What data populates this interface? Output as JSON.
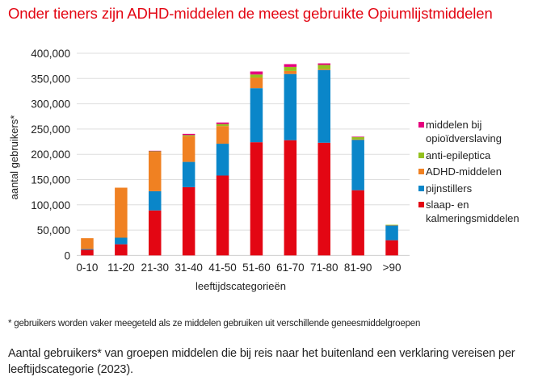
{
  "title": "Onder tieners zijn ADHD-middelen de meest gebruikte Opiumlijstmiddelen",
  "footnote": "* gebruikers worden vaker meegeteld als ze middelen gebruiken uit verschillende geneesmiddelgroepen",
  "caption": "Aantal gebruikers* van groepen middelen die bij reis naar het buitenland een verklaring vereisen per leeftijdscategorie (2023).",
  "chart_data": {
    "type": "bar",
    "stacked": true,
    "title": "Onder tieners zijn ADHD-middelen de meest gebruikte Opiumlijstmiddelen",
    "xlabel": "leeftijdscategorieën",
    "ylabel": "aantal gebruikers*",
    "ylim": [
      0,
      400000
    ],
    "yticks": [
      0,
      50000,
      100000,
      150000,
      200000,
      250000,
      300000,
      350000,
      400000
    ],
    "ytick_labels": [
      "0",
      "50,000",
      "100,000",
      "150,000",
      "200,000",
      "250,000",
      "300,000",
      "350,000",
      "400,000"
    ],
    "grid": true,
    "legend_position": "right",
    "categories": [
      "0-10",
      "11-20",
      "21-30",
      "31-40",
      "41-50",
      "51-60",
      "61-70",
      "71-80",
      "81-90",
      ">90"
    ],
    "series": [
      {
        "name": "slaap- en kalmeringsmiddelen",
        "color": "#e30613",
        "values": [
          11000,
          22000,
          89000,
          135000,
          158000,
          224000,
          228000,
          223000,
          129000,
          30000
        ]
      },
      {
        "name": "pijnstillers",
        "color": "#0a86c9",
        "values": [
          1500,
          13000,
          38000,
          50000,
          63000,
          107000,
          131000,
          144000,
          100000,
          29000
        ]
      },
      {
        "name": "ADHD-middelen",
        "color": "#f08122",
        "values": [
          21500,
          99000,
          78000,
          51000,
          35000,
          21000,
          6000,
          2000,
          500,
          1000
        ]
      },
      {
        "name": "anti-epileptica",
        "color": "#94c11f",
        "values": [
          0,
          0,
          1500,
          2000,
          4000,
          6000,
          8000,
          8000,
          5000,
          500
        ]
      },
      {
        "name": "middelen bij opioïdverslaving",
        "color": "#e6007e",
        "values": [
          0,
          0,
          500,
          2500,
          3000,
          6000,
          5500,
          3000,
          500,
          0
        ]
      }
    ],
    "legend_order": [
      "middelen bij opioïdverslaving",
      "anti-epileptica",
      "ADHD-middelen",
      "pijnstillers",
      "slaap- en kalmeringsmiddelen"
    ]
  },
  "legend": [
    {
      "label": "middelen bij opioïdverslaving",
      "color": "#e6007e"
    },
    {
      "label": "anti-epileptica",
      "color": "#94c11f"
    },
    {
      "label": "ADHD-middelen",
      "color": "#f08122"
    },
    {
      "label": "pijnstillers",
      "color": "#0a86c9"
    },
    {
      "label": "slaap- en kalmeringsmiddelen",
      "color": "#e30613"
    }
  ]
}
